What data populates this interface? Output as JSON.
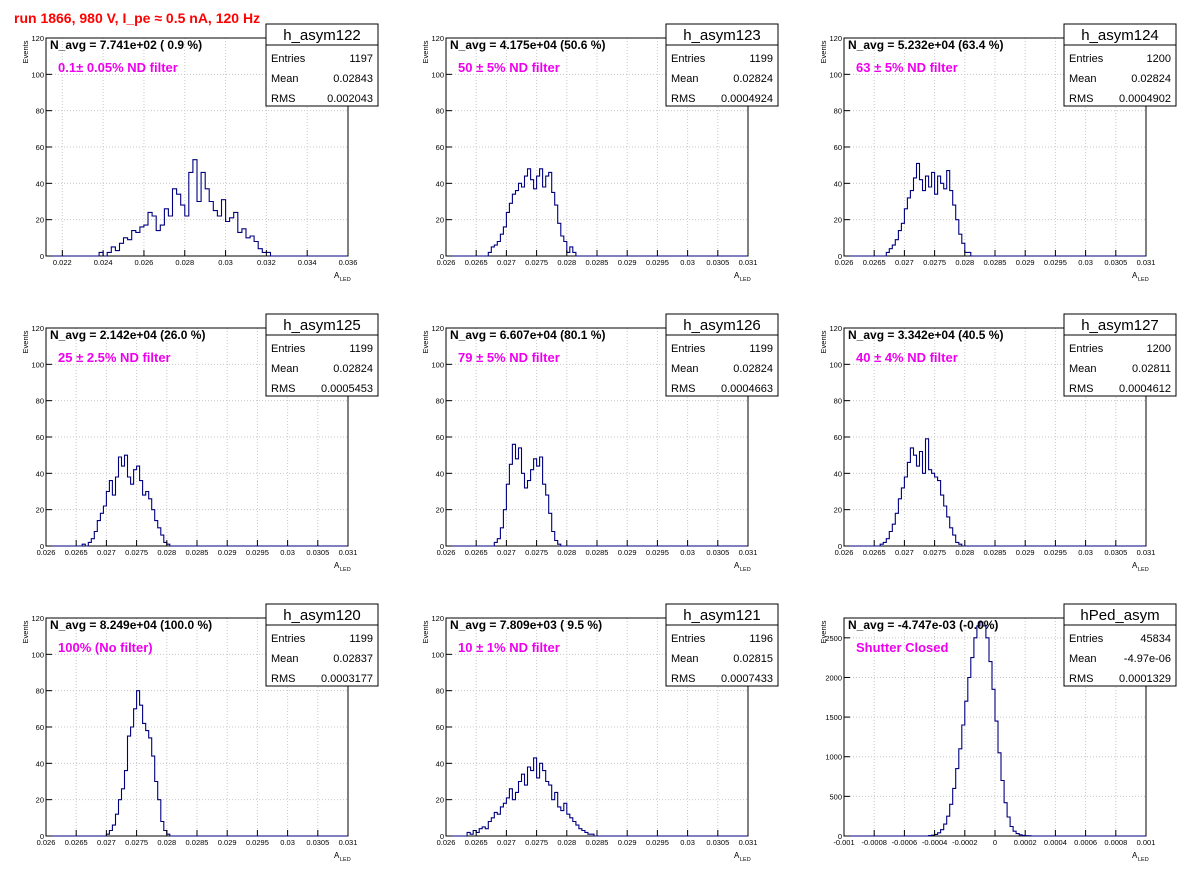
{
  "run_title": "run 1866,   980 V, I_pe ≈ 0.5 nA, 120 Hz",
  "colors": {
    "hist": "#000080",
    "annotation": "#ee00ee",
    "title": "#ff0000",
    "grid": "#c8c8c8"
  },
  "stat_labels": {
    "entries": "Entries",
    "mean": "Mean",
    "rms": "RMS"
  },
  "ylabel": "Events",
  "xlabel_main": "A",
  "xlabel_sub": "LED",
  "chart_data": [
    {
      "type": "bar",
      "name": "h_asym122",
      "navg": "N_avg = 7.741e+02 ( 0.9 %)",
      "annotation": "0.1± 0.05% ND filter",
      "entries": "1197",
      "mean": "0.02843",
      "rms": "0.002043",
      "xlim": [
        0.0212,
        0.036
      ],
      "ylim": [
        0,
        120
      ],
      "xticks": [
        0.022,
        0.024,
        0.026,
        0.028,
        0.03,
        0.032,
        0.034,
        0.036
      ],
      "xtick_labels": [
        "0.022",
        "0.024",
        "0.026",
        "0.028",
        "0.03",
        "0.032",
        "0.034",
        "0.036"
      ],
      "yticks": [
        0,
        20,
        40,
        60,
        80,
        100,
        120
      ],
      "ytick_labels": [
        "0",
        "20",
        "40",
        "60",
        "80",
        "100",
        "120"
      ],
      "bin_lo": 0.0212,
      "bin_width": 0.0002,
      "counts": [
        0,
        0,
        0,
        0,
        0,
        0,
        0,
        0,
        0,
        0,
        0,
        0,
        0,
        2,
        0,
        2,
        5,
        3,
        7,
        10,
        9,
        14,
        13,
        16,
        17,
        24,
        22,
        14,
        17,
        26,
        22,
        37,
        34,
        28,
        22,
        46,
        53,
        30,
        46,
        37,
        30,
        25,
        22,
        31,
        19,
        21,
        24,
        13,
        15,
        10,
        11,
        8,
        4,
        2,
        2,
        0,
        0,
        0,
        0,
        0,
        0,
        0,
        0,
        0,
        0,
        0,
        0,
        0,
        0,
        0,
        0,
        0,
        0,
        0,
        0
      ]
    },
    {
      "type": "bar",
      "name": "h_asym123",
      "navg": "N_avg = 4.175e+04 (50.6 %)",
      "annotation": "50 ± 5% ND filter",
      "entries": "1199",
      "mean": "0.02824",
      "rms": "0.0004924",
      "xlim": [
        0.026,
        0.031
      ],
      "ylim": [
        0,
        120
      ],
      "xticks": [
        0.026,
        0.0265,
        0.027,
        0.0275,
        0.028,
        0.0285,
        0.029,
        0.0295,
        0.03,
        0.0305,
        0.031
      ],
      "xtick_labels": [
        "0.026",
        "0.0265",
        "0.027",
        "0.0275",
        "0.028",
        "0.0285",
        "0.029",
        "0.0295",
        "0.03",
        "0.0305",
        "0.031"
      ],
      "yticks": [
        0,
        20,
        40,
        60,
        80,
        100,
        120
      ],
      "ytick_labels": [
        "0",
        "20",
        "40",
        "60",
        "80",
        "100",
        "120"
      ],
      "bin_lo": 0.026,
      "bin_width": 5e-05,
      "counts": [
        0,
        0,
        0,
        0,
        0,
        0,
        0,
        0,
        0,
        0,
        0,
        0,
        0,
        0,
        2,
        5,
        6,
        8,
        12,
        16,
        24,
        29,
        34,
        36,
        40,
        38,
        44,
        48,
        42,
        37,
        44,
        48,
        38,
        44,
        46,
        35,
        28,
        18,
        11,
        8,
        2,
        5,
        2,
        0,
        0,
        0,
        0,
        0,
        0,
        0,
        0,
        0,
        0,
        0,
        0,
        0,
        0,
        0,
        0,
        0,
        0,
        0,
        0,
        0,
        0,
        0,
        0,
        0,
        0,
        0,
        0,
        0,
        0,
        0,
        0,
        0,
        0,
        0,
        0,
        0,
        0,
        0,
        0,
        0,
        0,
        0,
        0,
        0,
        0,
        0,
        0,
        0,
        0,
        0,
        0,
        0,
        0,
        0,
        0,
        0
      ]
    },
    {
      "type": "bar",
      "name": "h_asym124",
      "navg": "N_avg = 5.232e+04 (63.4 %)",
      "annotation": "63 ± 5% ND filter",
      "entries": "1200",
      "mean": "0.02824",
      "rms": "0.0004902",
      "xlim": [
        0.026,
        0.031
      ],
      "ylim": [
        0,
        120
      ],
      "xticks": [
        0.026,
        0.0265,
        0.027,
        0.0275,
        0.028,
        0.0285,
        0.029,
        0.0295,
        0.03,
        0.0305,
        0.031
      ],
      "xtick_labels": [
        "0.026",
        "0.0265",
        "0.027",
        "0.0275",
        "0.028",
        "0.0285",
        "0.029",
        "0.0295",
        "0.03",
        "0.0305",
        "0.031"
      ],
      "yticks": [
        0,
        20,
        40,
        60,
        80,
        100,
        120
      ],
      "ytick_labels": [
        "0",
        "20",
        "40",
        "60",
        "80",
        "100",
        "120"
      ],
      "bin_lo": 0.026,
      "bin_width": 5e-05,
      "counts": [
        0,
        0,
        0,
        0,
        0,
        0,
        0,
        0,
        0,
        0,
        0,
        0,
        0,
        0,
        2,
        4,
        6,
        9,
        14,
        18,
        26,
        32,
        36,
        43,
        51,
        42,
        36,
        44,
        38,
        46,
        34,
        44,
        40,
        37,
        47,
        36,
        28,
        20,
        12,
        7,
        2,
        2,
        0,
        0,
        0,
        0,
        0,
        0,
        0,
        0,
        0,
        0,
        0,
        0,
        0,
        0,
        0,
        0,
        0,
        0,
        0,
        0,
        0,
        0,
        0,
        0,
        0,
        0,
        0,
        0,
        0,
        0,
        0,
        0,
        0,
        0,
        0,
        0,
        0,
        0,
        0,
        0,
        0,
        0,
        0,
        0,
        0,
        0,
        0,
        0,
        0,
        0,
        0,
        0,
        0,
        0,
        0,
        0,
        0,
        0
      ]
    },
    {
      "type": "bar",
      "name": "h_asym125",
      "navg": "N_avg = 2.142e+04 (26.0 %)",
      "annotation": "25 ± 2.5% ND filter",
      "entries": "1199",
      "mean": "0.02824",
      "rms": "0.0005453",
      "xlim": [
        0.026,
        0.031
      ],
      "ylim": [
        0,
        120
      ],
      "xticks": [
        0.026,
        0.0265,
        0.027,
        0.0275,
        0.028,
        0.0285,
        0.029,
        0.0295,
        0.03,
        0.0305,
        0.031
      ],
      "xtick_labels": [
        "0.026",
        "0.0265",
        "0.027",
        "0.0275",
        "0.028",
        "0.0285",
        "0.029",
        "0.0295",
        "0.03",
        "0.0305",
        "0.031"
      ],
      "yticks": [
        0,
        20,
        40,
        60,
        80,
        100,
        120
      ],
      "ytick_labels": [
        "0",
        "20",
        "40",
        "60",
        "80",
        "100",
        "120"
      ],
      "bin_lo": 0.026,
      "bin_width": 5e-05,
      "counts": [
        0,
        0,
        0,
        0,
        0,
        0,
        0,
        0,
        0,
        0,
        0,
        0,
        1,
        0,
        2,
        4,
        8,
        14,
        18,
        22,
        30,
        36,
        28,
        38,
        49,
        44,
        50,
        38,
        34,
        42,
        44,
        36,
        28,
        30,
        26,
        20,
        14,
        10,
        6,
        2,
        1,
        0,
        0,
        0,
        0,
        0,
        0,
        0,
        0,
        0,
        0,
        0,
        0,
        0,
        0,
        0,
        0,
        0,
        0,
        0,
        0,
        0,
        0,
        0,
        0,
        0,
        0,
        0,
        0,
        0,
        0,
        0,
        0,
        0,
        0,
        0,
        0,
        0,
        0,
        0,
        0,
        0,
        0,
        0,
        0,
        0,
        0,
        0,
        0,
        0,
        0,
        0,
        0,
        0,
        0,
        0,
        0,
        0,
        0,
        0
      ]
    },
    {
      "type": "bar",
      "name": "h_asym126",
      "navg": "N_avg = 6.607e+04 (80.1 %)",
      "annotation": "79 ± 5% ND filter",
      "entries": "1199",
      "mean": "0.02824",
      "rms": "0.0004663",
      "xlim": [
        0.026,
        0.031
      ],
      "ylim": [
        0,
        120
      ],
      "xticks": [
        0.026,
        0.0265,
        0.027,
        0.0275,
        0.028,
        0.0285,
        0.029,
        0.0295,
        0.03,
        0.0305,
        0.031
      ],
      "xtick_labels": [
        "0.026",
        "0.0265",
        "0.027",
        "0.0275",
        "0.028",
        "0.0285",
        "0.029",
        "0.0295",
        "0.03",
        "0.0305",
        "0.031"
      ],
      "yticks": [
        0,
        20,
        40,
        60,
        80,
        100,
        120
      ],
      "ytick_labels": [
        "0",
        "20",
        "40",
        "60",
        "80",
        "100",
        "120"
      ],
      "bin_lo": 0.026,
      "bin_width": 5e-05,
      "counts": [
        0,
        0,
        0,
        0,
        0,
        0,
        0,
        0,
        0,
        0,
        0,
        0,
        0,
        0,
        0,
        0,
        2,
        4,
        10,
        20,
        34,
        45,
        56,
        48,
        54,
        40,
        32,
        36,
        42,
        48,
        44,
        49,
        34,
        28,
        18,
        8,
        3,
        1,
        0,
        0,
        0,
        0,
        0,
        0,
        0,
        0,
        0,
        0,
        0,
        0,
        0,
        0,
        0,
        0,
        0,
        0,
        0,
        0,
        0,
        0,
        0,
        0,
        0,
        0,
        0,
        0,
        0,
        0,
        0,
        0,
        0,
        0,
        0,
        0,
        0,
        0,
        0,
        0,
        0,
        0,
        0,
        0,
        0,
        0,
        0,
        0,
        0,
        0,
        0,
        0,
        0,
        0,
        0,
        0,
        0,
        0,
        0,
        0,
        0,
        0
      ]
    },
    {
      "type": "bar",
      "name": "h_asym127",
      "navg": "N_avg = 3.342e+04 (40.5 %)",
      "annotation": "40 ± 4% ND filter",
      "entries": "1200",
      "mean": "0.02811",
      "rms": "0.0004612",
      "xlim": [
        0.026,
        0.031
      ],
      "ylim": [
        0,
        120
      ],
      "xticks": [
        0.026,
        0.0265,
        0.027,
        0.0275,
        0.028,
        0.0285,
        0.029,
        0.0295,
        0.03,
        0.0305,
        0.031
      ],
      "xtick_labels": [
        "0.026",
        "0.0265",
        "0.027",
        "0.0275",
        "0.028",
        "0.0285",
        "0.029",
        "0.0295",
        "0.03",
        "0.0305",
        "0.031"
      ],
      "yticks": [
        0,
        20,
        40,
        60,
        80,
        100,
        120
      ],
      "ytick_labels": [
        "0",
        "20",
        "40",
        "60",
        "80",
        "100",
        "120"
      ],
      "bin_lo": 0.026,
      "bin_width": 5e-05,
      "counts": [
        0,
        0,
        0,
        0,
        0,
        0,
        0,
        0,
        0,
        0,
        0,
        0,
        1,
        2,
        4,
        8,
        12,
        18,
        26,
        32,
        38,
        46,
        54,
        50,
        44,
        52,
        40,
        59,
        42,
        40,
        38,
        36,
        28,
        22,
        16,
        10,
        6,
        2,
        1,
        0,
        0,
        0,
        0,
        0,
        0,
        0,
        0,
        0,
        0,
        0,
        0,
        0,
        0,
        0,
        0,
        0,
        0,
        0,
        0,
        0,
        0,
        0,
        0,
        0,
        0,
        0,
        0,
        0,
        0,
        0,
        0,
        0,
        0,
        0,
        0,
        0,
        0,
        0,
        0,
        0,
        0,
        0,
        0,
        0,
        0,
        0,
        0,
        0,
        0,
        0,
        0,
        0,
        0,
        0,
        0,
        0,
        0,
        0,
        0,
        0
      ]
    },
    {
      "type": "bar",
      "name": "h_asym120",
      "navg": "N_avg = 8.249e+04 (100.0 %)",
      "annotation": "100% (No filter)",
      "entries": "1199",
      "mean": "0.02837",
      "rms": "0.0003177",
      "xlim": [
        0.026,
        0.031
      ],
      "ylim": [
        0,
        120
      ],
      "xticks": [
        0.026,
        0.0265,
        0.027,
        0.0275,
        0.028,
        0.0285,
        0.029,
        0.0295,
        0.03,
        0.0305,
        0.031
      ],
      "xtick_labels": [
        "0.026",
        "0.0265",
        "0.027",
        "0.0275",
        "0.028",
        "0.0285",
        "0.029",
        "0.0295",
        "0.03",
        "0.0305",
        "0.031"
      ],
      "yticks": [
        0,
        20,
        40,
        60,
        80,
        100,
        120
      ],
      "ytick_labels": [
        "0",
        "20",
        "40",
        "60",
        "80",
        "100",
        "120"
      ],
      "bin_lo": 0.026,
      "bin_width": 5e-05,
      "counts": [
        0,
        0,
        0,
        0,
        0,
        0,
        0,
        0,
        0,
        0,
        0,
        0,
        0,
        0,
        0,
        0,
        0,
        0,
        0,
        0,
        1,
        3,
        6,
        12,
        20,
        26,
        36,
        55,
        60,
        70,
        80,
        72,
        62,
        58,
        54,
        44,
        30,
        20,
        8,
        3,
        1,
        0,
        0,
        0,
        0,
        0,
        0,
        0,
        0,
        0,
        0,
        0,
        0,
        0,
        0,
        0,
        0,
        0,
        0,
        0,
        0,
        0,
        0,
        0,
        0,
        0,
        0,
        0,
        0,
        0,
        0,
        0,
        0,
        0,
        0,
        0,
        0,
        0,
        0,
        0,
        0,
        0,
        0,
        0,
        0,
        0,
        0,
        0,
        0,
        0,
        0,
        0,
        0,
        0,
        0,
        0,
        0,
        0,
        0,
        0
      ]
    },
    {
      "type": "bar",
      "name": "h_asym121",
      "navg": "N_avg = 7.809e+03 ( 9.5 %)",
      "annotation": "10 ± 1% ND filter",
      "entries": "1196",
      "mean": "0.02815",
      "rms": "0.0007433",
      "xlim": [
        0.026,
        0.031
      ],
      "ylim": [
        0,
        120
      ],
      "xticks": [
        0.026,
        0.0265,
        0.027,
        0.0275,
        0.028,
        0.0285,
        0.029,
        0.0295,
        0.03,
        0.0305,
        0.031
      ],
      "xtick_labels": [
        "0.026",
        "0.0265",
        "0.027",
        "0.0275",
        "0.028",
        "0.0285",
        "0.029",
        "0.0295",
        "0.03",
        "0.0305",
        "0.031"
      ],
      "yticks": [
        0,
        20,
        40,
        60,
        80,
        100,
        120
      ],
      "ytick_labels": [
        "0",
        "20",
        "40",
        "60",
        "80",
        "100",
        "120"
      ],
      "bin_lo": 0.026,
      "bin_width": 5e-05,
      "counts": [
        0,
        0,
        0,
        0,
        0,
        0,
        0,
        2,
        1,
        3,
        2,
        4,
        5,
        4,
        8,
        10,
        13,
        12,
        16,
        18,
        21,
        26,
        20,
        24,
        30,
        34,
        28,
        38,
        36,
        43,
        32,
        40,
        36,
        30,
        28,
        20,
        24,
        16,
        14,
        18,
        12,
        10,
        8,
        6,
        4,
        3,
        2,
        1,
        1,
        0,
        0,
        0,
        0,
        0,
        0,
        0,
        0,
        0,
        0,
        0,
        0,
        0,
        0,
        0,
        0,
        0,
        0,
        0,
        0,
        0,
        0,
        0,
        0,
        0,
        0,
        0,
        0,
        0,
        0,
        0,
        0,
        0,
        0,
        0,
        0,
        0,
        0,
        0,
        0,
        0,
        0,
        0,
        0,
        0,
        0,
        0,
        0,
        0,
        0,
        0
      ]
    },
    {
      "type": "bar",
      "name": "hPed_asym",
      "navg": "N_avg = -4.747e-03 (-0.0%)",
      "annotation": "Shutter Closed",
      "entries": "45834",
      "mean": "-4.97e-06",
      "rms": "0.0001329",
      "xlim": [
        -0.001,
        0.001
      ],
      "ylim": [
        0,
        2750
      ],
      "xticks": [
        -0.001,
        -0.0008,
        -0.0006,
        -0.0004,
        -0.0002,
        0,
        0.0002,
        0.0004,
        0.0006,
        0.0008,
        0.001
      ],
      "xtick_labels": [
        "-0.001",
        "-0.0008",
        "-0.0006",
        "-0.0004",
        "-0.0002",
        "0",
        "0.0002",
        "0.0004",
        "0.0006",
        "0.0008",
        "0.001"
      ],
      "yticks": [
        0,
        500,
        1000,
        1500,
        2000,
        2500
      ],
      "ytick_labels": [
        "0",
        "500",
        "1000",
        "1500",
        "2000",
        "2500"
      ],
      "bin_lo": -0.001,
      "bin_width": 2e-05,
      "counts": [
        0,
        0,
        0,
        0,
        0,
        0,
        0,
        0,
        0,
        0,
        0,
        0,
        0,
        0,
        0,
        0,
        0,
        0,
        0,
        0,
        0,
        0,
        0,
        0,
        0,
        0,
        0,
        0,
        5,
        10,
        20,
        40,
        80,
        150,
        250,
        400,
        600,
        850,
        1100,
        1400,
        1700,
        2000,
        2250,
        2500,
        2650,
        2700,
        2650,
        2500,
        2200,
        1850,
        1450,
        1050,
        700,
        420,
        240,
        120,
        60,
        30,
        15,
        8,
        4,
        2,
        0,
        0,
        0,
        0,
        0,
        0,
        0,
        0,
        0,
        0,
        0,
        0,
        0,
        0,
        0,
        0,
        0,
        0,
        0,
        0,
        0,
        0,
        0,
        0,
        0,
        0,
        0,
        0,
        0,
        0,
        0,
        0,
        0,
        0,
        0,
        0,
        0,
        0
      ]
    }
  ]
}
